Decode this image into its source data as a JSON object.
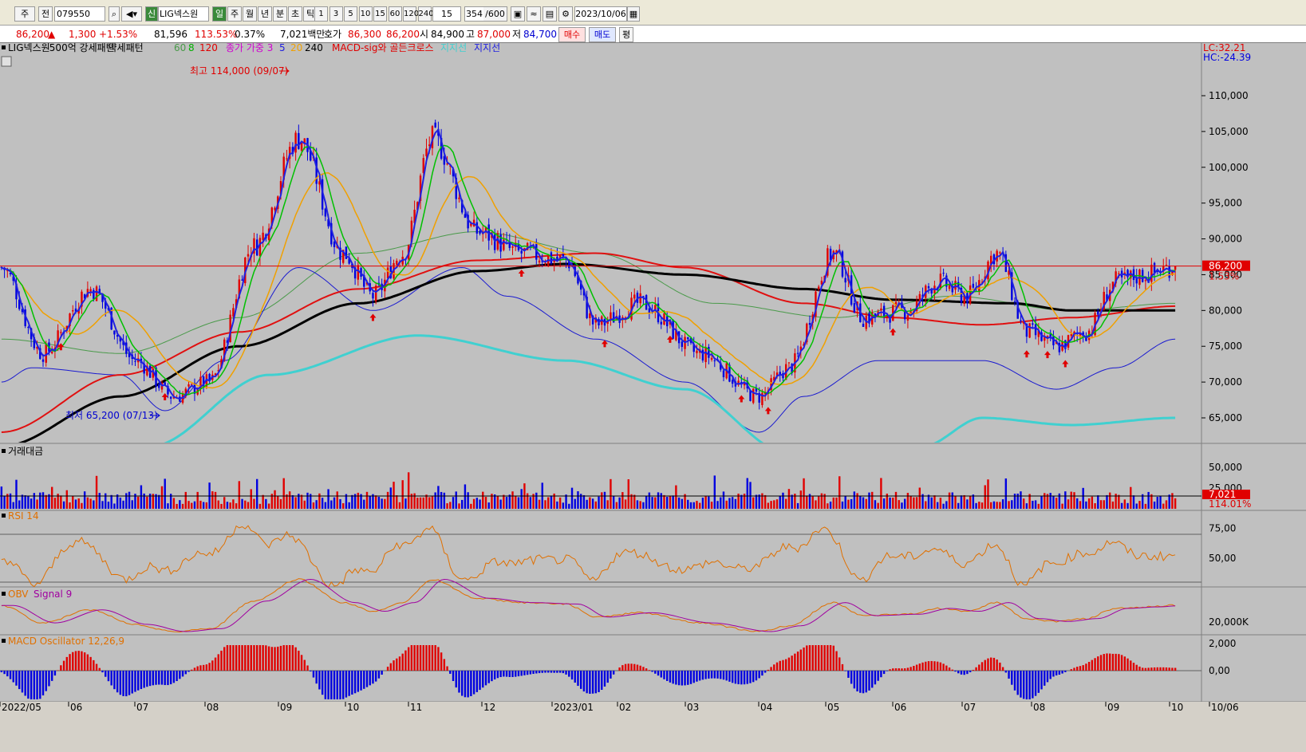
{
  "toolbar": {
    "type_label": "주",
    "market_label": "전",
    "code": "079550",
    "new_badge": "신",
    "stock_name": "LIG넥스원",
    "periods": [
      "일",
      "주",
      "월",
      "년",
      "분",
      "초",
      "틱"
    ],
    "intervals": [
      "1",
      "3",
      "5",
      "10",
      "15",
      "60",
      "120",
      "240"
    ],
    "interval_value": "15",
    "count": "354",
    "count_total": "/600",
    "date": "2023/10/06"
  },
  "quote": {
    "price": "86,200",
    "change": "1,300",
    "change_pct": "+1.53%",
    "volume": "81,596",
    "volume_ratio": "113.53%",
    "turnover": "0.37%",
    "amount": "7,021백만",
    "bid_label": "호가",
    "ask": "86,300",
    "bid": "86,200",
    "open_label": "시",
    "open": "84,900",
    "high_label": "고",
    "high": "87,000",
    "low_label": "저",
    "low": "84,700",
    "buy_label": "매수",
    "sell_label": "매도",
    "eval_label": "평"
  },
  "colors": {
    "up": "#e00000",
    "down": "#0000e0",
    "bg": "#c0c0c0"
  },
  "chart_data": [
    {
      "type": "candlestick",
      "legend": {
        "name": "LIG넥스원",
        "pattern_strong": "500억 강세패턴",
        "pattern_weak": "약세패턴",
        "ma_labels": [
          "60",
          "8",
          "120"
        ],
        "wma_label": "종가 가중 3",
        "wma_labels": [
          "5",
          "20",
          "240"
        ],
        "macd_cross": "MACD-sig와 골든크로스",
        "support1": "지지선",
        "support2": "지지선"
      },
      "scale_note": [
        "LC:32.21",
        "HC:-24.39"
      ],
      "price_tag": "86,200",
      "pct_tag": "1.53%",
      "yticks": [
        "110,000",
        "105,000",
        "100,000",
        "95,000",
        "90,000",
        "85,000",
        "80,000",
        "75,000",
        "70,000",
        "65,000"
      ],
      "ytick_values": [
        110000,
        105000,
        100000,
        95000,
        90000,
        85000,
        80000,
        75000,
        70000,
        65000
      ],
      "ylim": [
        61000,
        116000
      ],
      "last_price": 86200,
      "annotations": {
        "high": "최고 114,000 (09/07)",
        "low": "최저 65,200 (07/13)"
      },
      "xticks": [
        "2022/05",
        "06",
        "07",
        "08",
        "09",
        "10",
        "11",
        "12",
        "2023/01",
        "02",
        "03",
        "04",
        "05",
        "06",
        "07",
        "08",
        "09",
        "10",
        "10/06"
      ],
      "close_anchors": [
        [
          0,
          86000
        ],
        [
          14,
          74000
        ],
        [
          30,
          83000
        ],
        [
          45,
          73000
        ],
        [
          58,
          68000
        ],
        [
          70,
          70000
        ],
        [
          85,
          89000
        ],
        [
          100,
          104000
        ],
        [
          115,
          88000
        ],
        [
          125,
          82000
        ],
        [
          135,
          88000
        ],
        [
          145,
          104000
        ],
        [
          160,
          91000
        ],
        [
          175,
          88000
        ],
        [
          190,
          87000
        ],
        [
          200,
          78000
        ],
        [
          215,
          81000
        ],
        [
          235,
          74000
        ],
        [
          255,
          68000
        ],
        [
          265,
          72000
        ],
        [
          280,
          88000
        ],
        [
          290,
          79000
        ],
        [
          305,
          80000
        ],
        [
          315,
          84000
        ],
        [
          325,
          82000
        ],
        [
          335,
          88000
        ],
        [
          345,
          77000
        ],
        [
          355,
          75000
        ],
        [
          365,
          77000
        ],
        [
          375,
          84000
        ],
        [
          385,
          85000
        ],
        [
          395,
          86200
        ]
      ],
      "bollinger_mid": [
        [
          0,
          76000
        ],
        [
          40,
          74000
        ],
        [
          80,
          79000
        ],
        [
          120,
          88000
        ],
        [
          160,
          91000
        ],
        [
          200,
          88000
        ],
        [
          240,
          81000
        ],
        [
          280,
          79000
        ],
        [
          320,
          82000
        ],
        [
          360,
          80000
        ],
        [
          395,
          81000
        ]
      ],
      "bollinger_lower": [
        [
          0,
          70000
        ],
        [
          10,
          72000
        ],
        [
          40,
          71000
        ],
        [
          55,
          66000
        ],
        [
          75,
          73000
        ],
        [
          100,
          86000
        ],
        [
          125,
          80000
        ],
        [
          155,
          86000
        ],
        [
          170,
          82000
        ],
        [
          200,
          76000
        ],
        [
          230,
          70000
        ],
        [
          255,
          63000
        ],
        [
          270,
          68000
        ],
        [
          295,
          73000
        ],
        [
          330,
          73000
        ],
        [
          355,
          69000
        ],
        [
          375,
          72000
        ],
        [
          395,
          76000
        ]
      ],
      "ma_black": [
        [
          0,
          61000
        ],
        [
          40,
          68000
        ],
        [
          80,
          75000
        ],
        [
          120,
          81000
        ],
        [
          160,
          85500
        ],
        [
          190,
          86500
        ],
        [
          230,
          85000
        ],
        [
          270,
          83000
        ],
        [
          300,
          81500
        ],
        [
          340,
          81000
        ],
        [
          360,
          80000
        ],
        [
          395,
          80000
        ]
      ],
      "ma_red": [
        [
          0,
          63000
        ],
        [
          40,
          71000
        ],
        [
          80,
          77000
        ],
        [
          120,
          83000
        ],
        [
          160,
          87000
        ],
        [
          200,
          88000
        ],
        [
          230,
          86000
        ],
        [
          270,
          81000
        ],
        [
          300,
          79000
        ],
        [
          330,
          78000
        ],
        [
          360,
          79000
        ],
        [
          395,
          80600
        ]
      ],
      "ma_cyan": [
        [
          50,
          61000
        ],
        [
          90,
          71000
        ],
        [
          140,
          76500
        ],
        [
          190,
          73000
        ],
        [
          230,
          69000
        ],
        [
          265,
          60000
        ],
        [
          310,
          61000
        ],
        [
          330,
          65000
        ],
        [
          360,
          64000
        ],
        [
          395,
          65000
        ]
      ],
      "markers": [
        20,
        55,
        125,
        175,
        203,
        225,
        249,
        258,
        300,
        345,
        352,
        358
      ],
      "sub_panels": [
        {
          "name": "거래대금",
          "yticks": [
            "50,000",
            "25,000"
          ],
          "ytick_values": [
            50000,
            25000
          ],
          "last_value": "7,021",
          "ratio": "114.01%"
        },
        {
          "name": "RSI 14",
          "yticks": [
            "75,00",
            "50,00"
          ],
          "ytick_values": [
            75,
            50
          ]
        },
        {
          "name": "OBV",
          "signal": "Signal 9",
          "yticks": [
            "20,000K"
          ]
        },
        {
          "name": "MACD Oscillator 12,26,9",
          "yticks": [
            "2,000",
            "0,00"
          ],
          "ytick_values": [
            2000,
            0
          ]
        }
      ]
    }
  ]
}
